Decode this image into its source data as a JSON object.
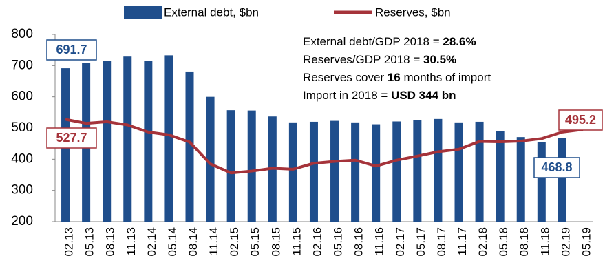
{
  "chart_data": {
    "type": "bar_line",
    "categories": [
      "02.13",
      "05.13",
      "08.13",
      "11.13",
      "02.14",
      "05.14",
      "08.14",
      "11.14",
      "02.15",
      "05.15",
      "08.15",
      "11.15",
      "02.16",
      "05.16",
      "08.16",
      "11.16",
      "02.17",
      "05.17",
      "08.17",
      "11.17",
      "02.18",
      "05.18",
      "08.18",
      "11.18",
      "02.19",
      "05.19"
    ],
    "series": [
      {
        "name": "External debt, $bn",
        "type": "bar",
        "color": "#1f4e8c",
        "values": [
          691.7,
          708,
          716,
          729,
          716,
          733,
          681,
          600,
          557,
          556,
          537,
          518,
          520,
          523,
          518,
          512,
          521,
          526,
          529,
          518,
          520,
          490,
          471,
          454,
          468.8,
          null
        ]
      },
      {
        "name": "Reserves, $bn",
        "type": "line",
        "color": "#a5333a",
        "values": [
          527.7,
          515,
          520,
          510,
          487,
          478,
          455,
          385,
          356,
          362,
          371,
          368,
          387,
          393,
          397,
          378,
          397,
          410,
          424,
          432,
          457,
          456,
          458,
          466,
          487,
          495.2
        ]
      }
    ],
    "ylim": [
      200,
      800
    ],
    "yticks": [
      200,
      300,
      400,
      500,
      600,
      700,
      800
    ],
    "annotations": [
      {
        "text": "External debt/GDP 2018 = ",
        "bold": "28.6%"
      },
      {
        "text": "Reserves/GDP 2018 = ",
        "bold": "30.5%"
      },
      {
        "text": "Reserves cover ",
        "bold": "16",
        "after": " months of import"
      },
      {
        "text": "Import in 2018 = ",
        "bold": "USD 344 bn"
      }
    ]
  }
}
